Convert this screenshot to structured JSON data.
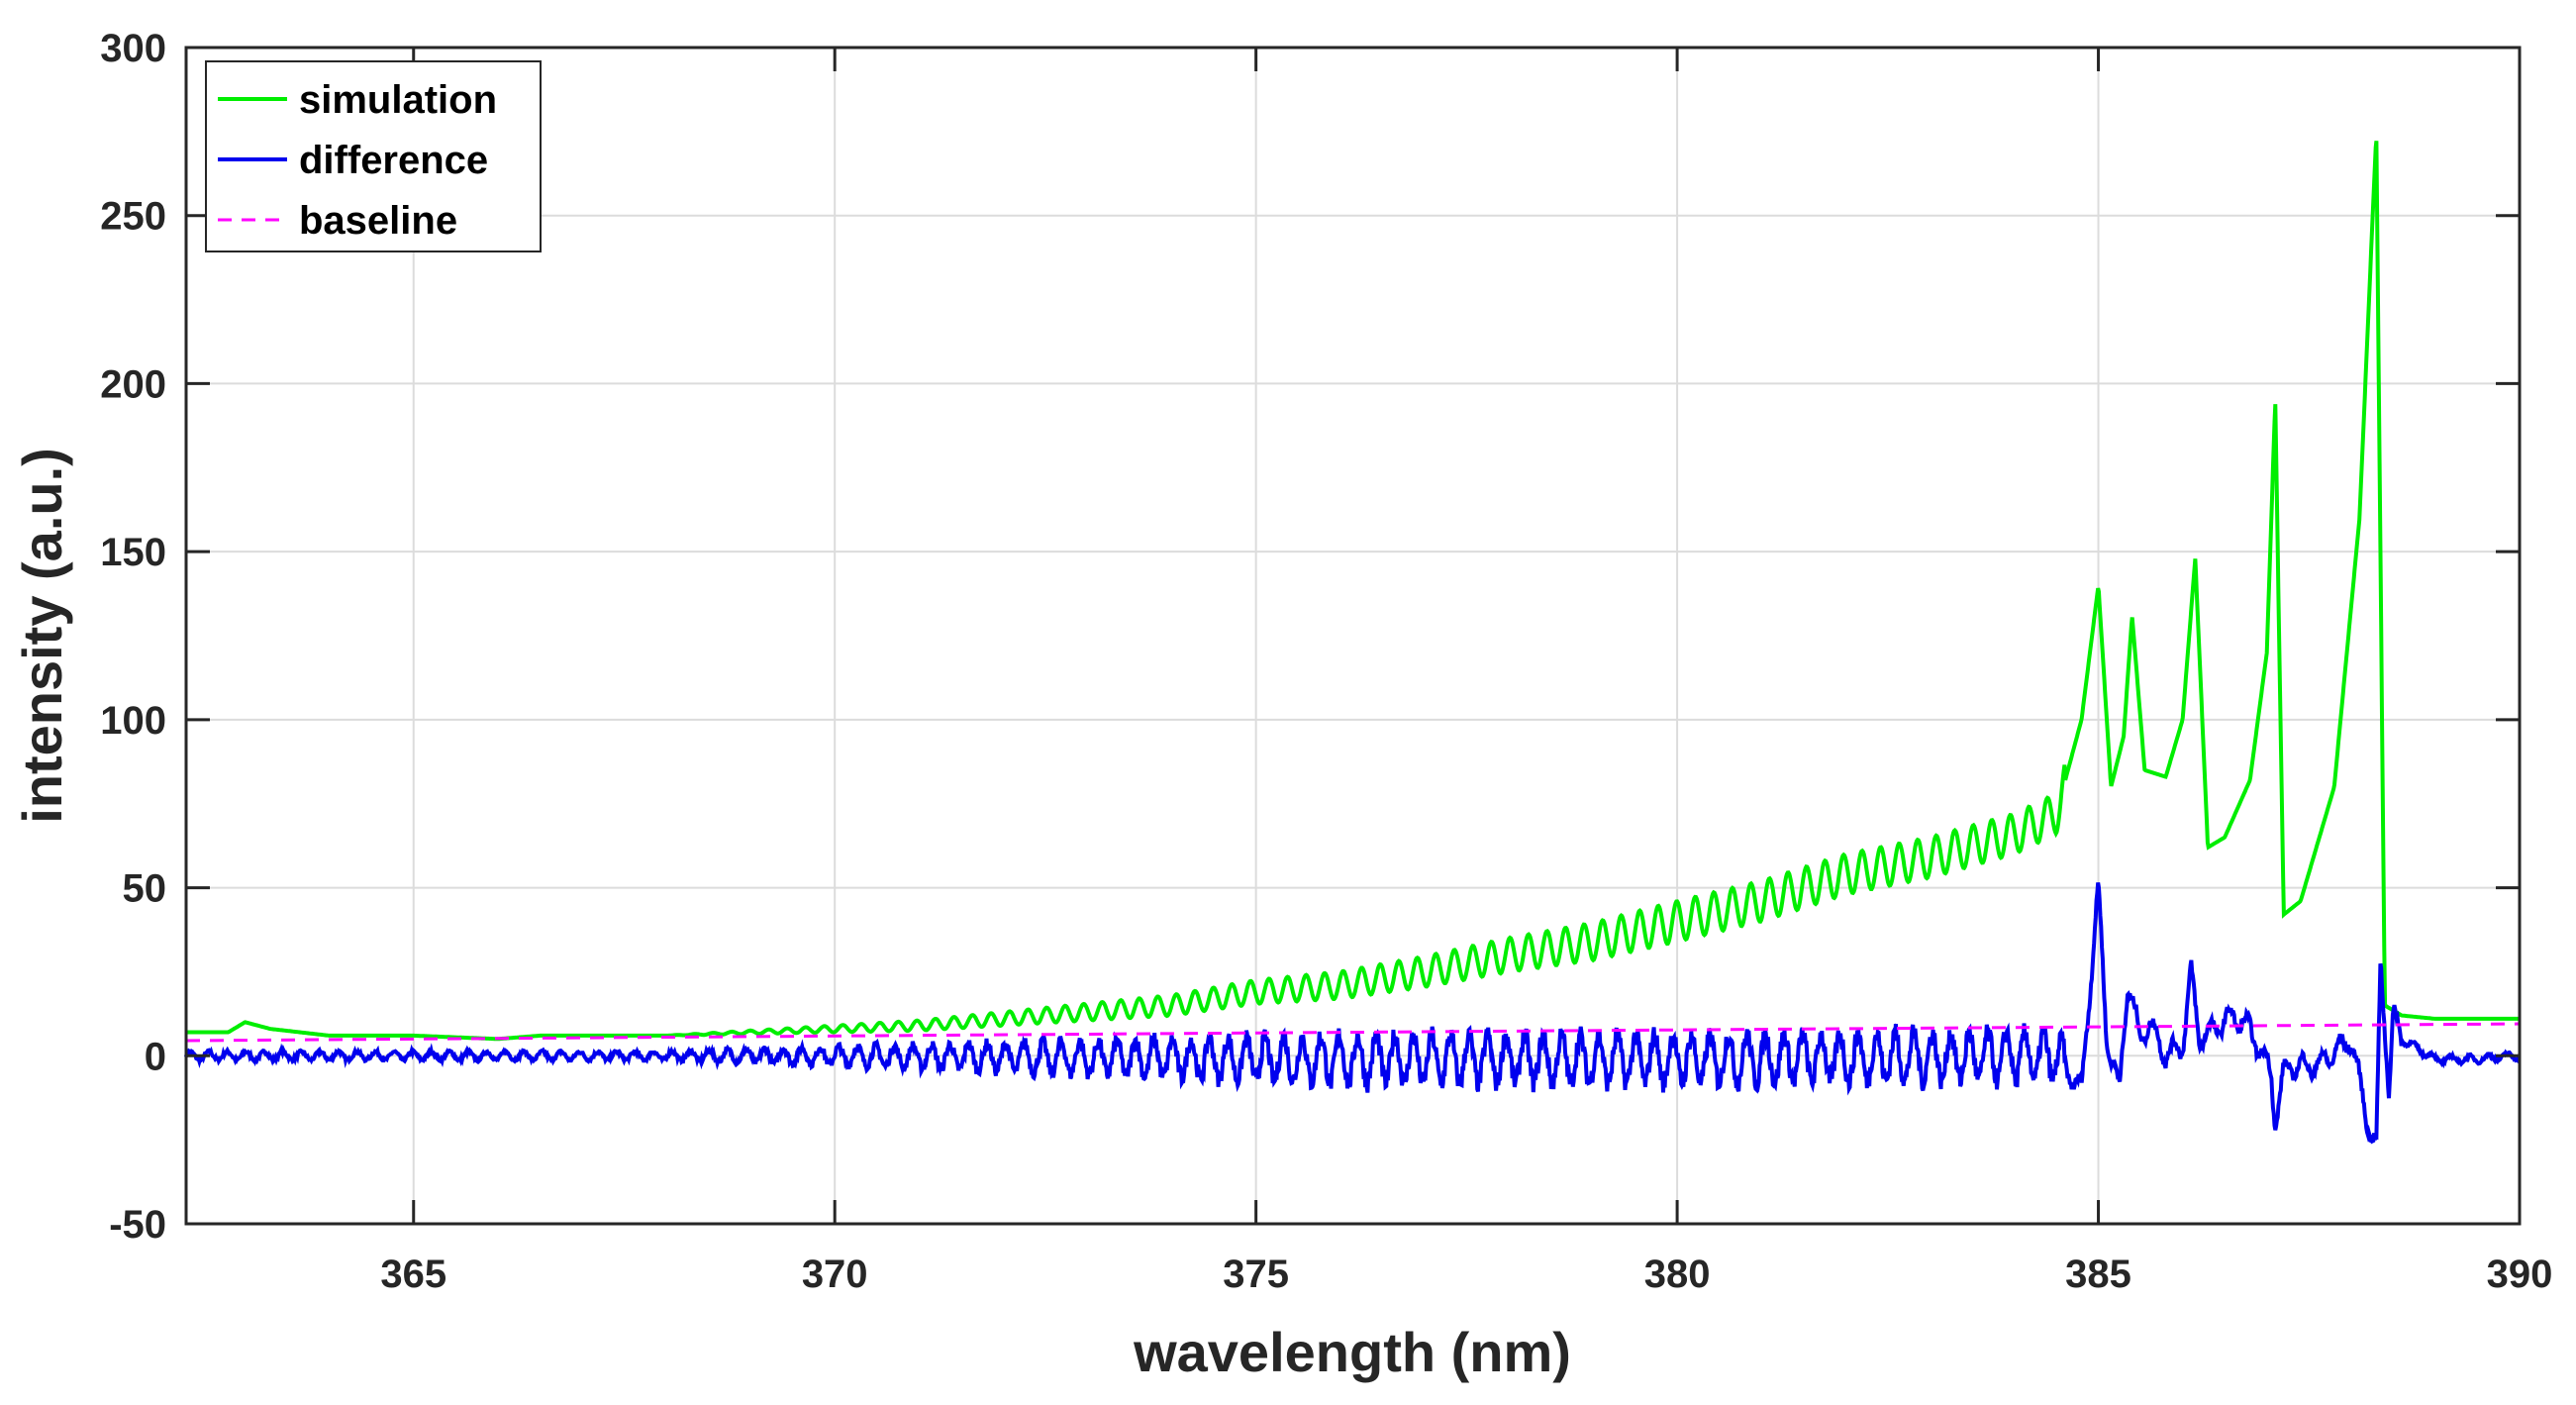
{
  "chart_data": {
    "type": "line",
    "title": "",
    "xlabel": "wavelength (nm)",
    "ylabel": "intensity (a.u.)",
    "xlim": [
      362.3,
      390
    ],
    "ylim": [
      -50,
      300
    ],
    "xticks": [
      365,
      370,
      375,
      380,
      385,
      390
    ],
    "yticks": [
      -50,
      0,
      50,
      100,
      150,
      200,
      250,
      300
    ],
    "xtick_labels": [
      "365",
      "370",
      "375",
      "380",
      "385",
      "390"
    ],
    "ytick_labels": [
      "-50",
      "0",
      "50",
      "100",
      "150",
      "200",
      "250",
      "300"
    ],
    "grid": true,
    "legend_position": "top-left",
    "series": [
      {
        "name": "simulation",
        "color": "#00ee00",
        "style": "solid",
        "x": [
          362.3,
          362.8,
          363.0,
          363.3,
          364.0,
          365.0,
          366.0,
          366.5,
          367.0,
          368.0,
          369.0,
          370.0,
          371.0,
          372.0,
          373.0,
          374.0,
          375.0,
          376.0,
          377.0,
          378.0,
          379.0,
          380.0,
          381.0,
          382.0,
          383.0,
          384.0,
          384.5,
          384.8,
          385.0,
          385.15,
          385.3,
          385.4,
          385.55,
          385.8,
          386.0,
          386.15,
          386.3,
          386.5,
          386.8,
          387.0,
          387.1,
          387.2,
          387.4,
          387.8,
          388.1,
          388.3,
          388.4,
          388.6,
          389.0,
          389.9
        ],
        "y": [
          7,
          7,
          10,
          8,
          6,
          6,
          5,
          6,
          6,
          6,
          7,
          8,
          9,
          11,
          13,
          15,
          19,
          21,
          25,
          30,
          34,
          40,
          46,
          54,
          59,
          66,
          72,
          100,
          140,
          80,
          95,
          131,
          85,
          83,
          100,
          148,
          62,
          65,
          82,
          120,
          195,
          42,
          46,
          80,
          160,
          275,
          15,
          12,
          11,
          11
        ],
        "oscillation_amplitude_start": 0,
        "oscillation_amplitude_peak": 6,
        "oscillation_start": 368,
        "oscillation_end": 384.6
      },
      {
        "name": "difference",
        "color": "#0000ee",
        "style": "solid",
        "x": [
          362.3,
          366.0,
          370.0,
          375.0,
          380.0,
          384.5,
          384.8,
          385.0,
          385.1,
          385.25,
          385.35,
          385.5,
          385.6,
          385.8,
          386.0,
          386.1,
          386.2,
          386.6,
          386.8,
          387.05,
          387.1,
          387.2,
          387.3,
          387.6,
          388.0,
          388.2,
          388.3,
          388.35,
          388.45,
          388.5,
          388.6,
          389.0,
          389.5,
          389.9
        ],
        "y": [
          0,
          0,
          0,
          -1,
          -1,
          0,
          -10,
          50,
          5,
          -10,
          22,
          5,
          10,
          0,
          3,
          25,
          5,
          12,
          8,
          -5,
          -20,
          -5,
          -3,
          -3,
          5,
          -20,
          -28,
          28,
          -10,
          12,
          5,
          -1,
          -1,
          0
        ],
        "oscillation_amplitude_peak": 7
      },
      {
        "name": "baseline",
        "color": "#ff00ff",
        "style": "dashed",
        "x": [
          362.3,
          390
        ],
        "y": [
          4.5,
          9.5
        ]
      }
    ]
  }
}
